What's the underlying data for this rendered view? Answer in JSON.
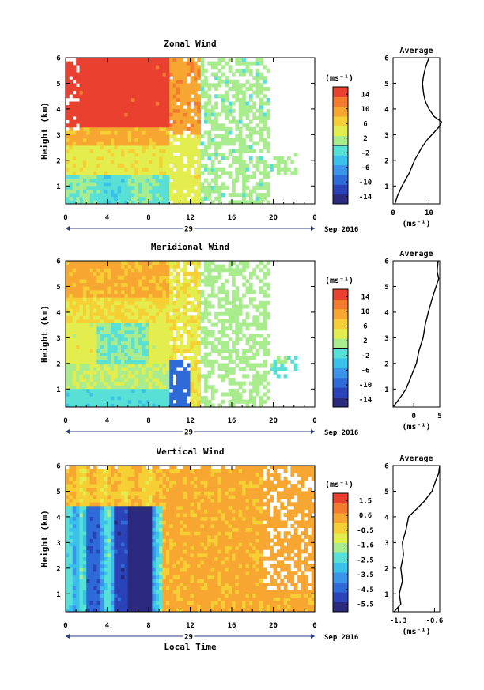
{
  "xlabel_bottom": "Local Time",
  "date_label": "Sep 2016",
  "day_label": "29",
  "colorbar_unit": "(ms⁻¹)",
  "avg_unit": "(ms⁻¹)",
  "colormap": [
    "#2b2a7e",
    "#2a43b8",
    "#2f6bd8",
    "#3a94ea",
    "#39c1ea",
    "#58e0d6",
    "#a8ec8d",
    "#e3ee4e",
    "#f6cf34",
    "#f7a632",
    "#f47a2e",
    "#ea4030"
  ],
  "chart_data": [
    {
      "type": "heatmap",
      "title": "Zonal Wind",
      "ylabel": "Height (km)",
      "xlabel": "",
      "x_ticks": [
        "0",
        "4",
        "8",
        "12",
        "16",
        "20",
        "0"
      ],
      "y_ticks": [
        "1",
        "2",
        "3",
        "4",
        "5",
        "6"
      ],
      "xlim": [
        0,
        24
      ],
      "ylim": [
        0.3,
        6.0
      ],
      "colorbar_ticks": [
        "14",
        "10",
        "6",
        "2",
        "-2",
        "-6",
        "-10",
        "-14"
      ],
      "colorbar_range": [
        -16,
        16
      ],
      "average": {
        "title": "Average",
        "x_ticks": [
          "0",
          "10"
        ],
        "xlim": [
          0,
          13
        ],
        "height": [
          0.3,
          0.6,
          1.0,
          1.5,
          2.0,
          2.5,
          2.8,
          3.1,
          3.3,
          3.5,
          3.7,
          4.0,
          4.3,
          4.6,
          5.0,
          5.3,
          5.6,
          6.0
        ],
        "value": [
          0.5,
          1.2,
          2.5,
          4.5,
          6.0,
          8.0,
          9.5,
          11.5,
          12.8,
          13.5,
          11.5,
          10.0,
          9.0,
          8.5,
          8.2,
          8.5,
          9.0,
          10.0
        ]
      }
    },
    {
      "type": "heatmap",
      "title": "Meridional Wind",
      "ylabel": "Height (km)",
      "xlabel": "",
      "x_ticks": [
        "0",
        "4",
        "8",
        "12",
        "16",
        "20",
        "0"
      ],
      "y_ticks": [
        "1",
        "2",
        "3",
        "4",
        "5",
        "6"
      ],
      "xlim": [
        0,
        24
      ],
      "ylim": [
        0.3,
        6.0
      ],
      "colorbar_ticks": [
        "14",
        "10",
        "6",
        "2",
        "-2",
        "-6",
        "-10",
        "-14"
      ],
      "colorbar_range": [
        -16,
        16
      ],
      "average": {
        "title": "Average",
        "x_ticks": [
          "0",
          "5"
        ],
        "xlim": [
          -4,
          5
        ],
        "height": [
          0.3,
          0.7,
          1.0,
          1.5,
          2.0,
          2.5,
          3.0,
          3.5,
          4.0,
          4.5,
          5.0,
          5.3,
          5.6,
          6.0
        ],
        "value": [
          -4.0,
          -2.5,
          -1.5,
          -0.5,
          0.5,
          1.0,
          1.8,
          2.2,
          2.8,
          3.5,
          4.3,
          4.8,
          4.5,
          4.7
        ]
      }
    },
    {
      "type": "heatmap",
      "title": "Vertical Wind",
      "ylabel": "Height (km)",
      "xlabel": "Local Time",
      "x_ticks": [
        "0",
        "4",
        "8",
        "12",
        "16",
        "20",
        "0"
      ],
      "y_ticks": [
        "1",
        "2",
        "3",
        "4",
        "5",
        "6"
      ],
      "xlim": [
        0,
        24
      ],
      "ylim": [
        0.3,
        6.0
      ],
      "colorbar_ticks": [
        "1.5",
        "0.6",
        "-0.5",
        "-1.6",
        "-2.5",
        "-3.5",
        "-4.5",
        "-5.5"
      ],
      "colorbar_range": [
        -6,
        2
      ],
      "average": {
        "title": "Average",
        "x_ticks": [
          "-1.3",
          "-0.6"
        ],
        "xlim": [
          -1.4,
          -0.5
        ],
        "height": [
          0.3,
          0.6,
          1.0,
          1.5,
          2.0,
          2.5,
          3.0,
          3.5,
          4.0,
          4.3,
          4.6,
          5.0,
          5.4,
          5.7,
          6.0
        ],
        "value": [
          -1.38,
          -1.25,
          -1.28,
          -1.22,
          -1.25,
          -1.2,
          -1.22,
          -1.15,
          -1.1,
          -0.95,
          -0.8,
          -0.65,
          -0.58,
          -0.52,
          -0.5
        ]
      }
    }
  ]
}
